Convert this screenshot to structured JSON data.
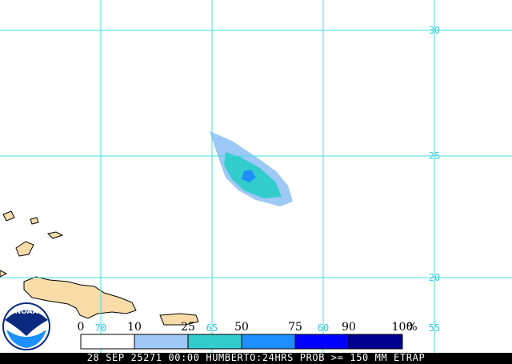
{
  "map": {
    "logo": "NOAA",
    "lat_labels": [
      "30",
      "25",
      "20"
    ],
    "lon_labels": [
      "70",
      "65",
      "60",
      "55"
    ],
    "legend": {
      "ticks": [
        0,
        10,
        25,
        50,
        75,
        90,
        100
      ],
      "unit": "%",
      "colors": [
        "#ffffff",
        "#9ec8f5",
        "#33cccc",
        "#1e8fff",
        "#0000ff",
        "#000090"
      ]
    },
    "banner": "28 SEP 25271 00:00 HUMBERTO:24HRS PROB >= 150 MM ETRAP"
  }
}
